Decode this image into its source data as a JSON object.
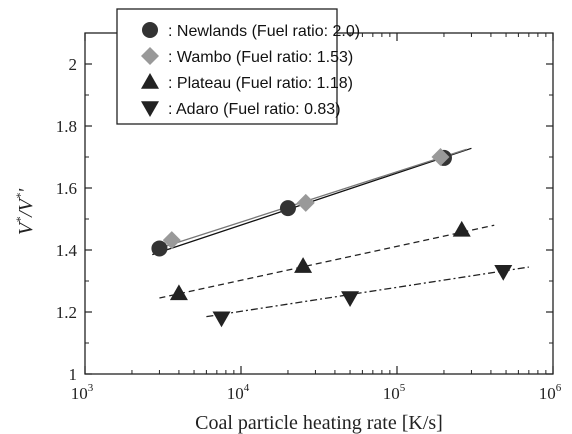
{
  "chart_data": {
    "type": "scatter",
    "xlabel": "Coal particle heating rate [K/s]",
    "ylabel_main": "V",
    "ylabel_super1": "*",
    "ylabel_sep": "/V",
    "ylabel_super2": "*",
    "ylabel_prime": "'",
    "x_scale": "log",
    "xlim": [
      1000,
      1000000
    ],
    "ylim": [
      1.0,
      2.1
    ],
    "x_ticks": [
      {
        "value": 1000,
        "base": "10",
        "exp": "3"
      },
      {
        "value": 10000,
        "base": "10",
        "exp": "4"
      },
      {
        "value": 100000,
        "base": "10",
        "exp": "5"
      },
      {
        "value": 1000000,
        "base": "10",
        "exp": "6"
      }
    ],
    "y_ticks": [
      {
        "value": 1.0,
        "label": "1"
      },
      {
        "value": 1.2,
        "label": "1.2"
      },
      {
        "value": 1.4,
        "label": "1.4"
      },
      {
        "value": 1.6,
        "label": "1.6"
      },
      {
        "value": 1.8,
        "label": "1.8"
      },
      {
        "value": 2.0,
        "label": "2"
      }
    ],
    "grid": false,
    "legend_position": "top-left",
    "series": [
      {
        "name": ": Newlands (Fuel ratio: 2.0)",
        "marker": "circle",
        "color": "#333333",
        "points": [
          [
            3000,
            1.405
          ],
          [
            20000,
            1.535
          ],
          [
            200000,
            1.697
          ]
        ],
        "fit": {
          "x": [
            2700,
            300000
          ],
          "y": [
            1.385,
            1.728
          ],
          "style": "solid",
          "color": "#111111"
        }
      },
      {
        "name": ": Wambo (Fuel ratio: 1.53)",
        "marker": "diamond",
        "color": "#999999",
        "points": [
          [
            3600,
            1.432
          ],
          [
            26000,
            1.552
          ],
          [
            190000,
            1.7
          ]
        ],
        "fit": {
          "x": [
            3200,
            280000
          ],
          "y": [
            1.41,
            1.725
          ],
          "style": "solid",
          "color": "#777777"
        }
      },
      {
        "name": ": Plateau (Fuel ratio: 1.18)",
        "marker": "triangle-up",
        "color": "#222222",
        "points": [
          [
            4000,
            1.26
          ],
          [
            25000,
            1.348
          ],
          [
            260000,
            1.465
          ]
        ],
        "fit": {
          "x": [
            3000,
            420000
          ],
          "y": [
            1.245,
            1.48
          ],
          "style": "dashed",
          "color": "#222222"
        }
      },
      {
        "name": ": Adaro (Fuel ratio: 0.83)",
        "marker": "triangle-down",
        "color": "#222222",
        "points": [
          [
            7500,
            1.18
          ],
          [
            50000,
            1.245
          ],
          [
            480000,
            1.33
          ]
        ],
        "fit": {
          "x": [
            6000,
            700000
          ],
          "y": [
            1.185,
            1.345
          ],
          "style": "dashdot",
          "color": "#222222"
        }
      }
    ]
  }
}
